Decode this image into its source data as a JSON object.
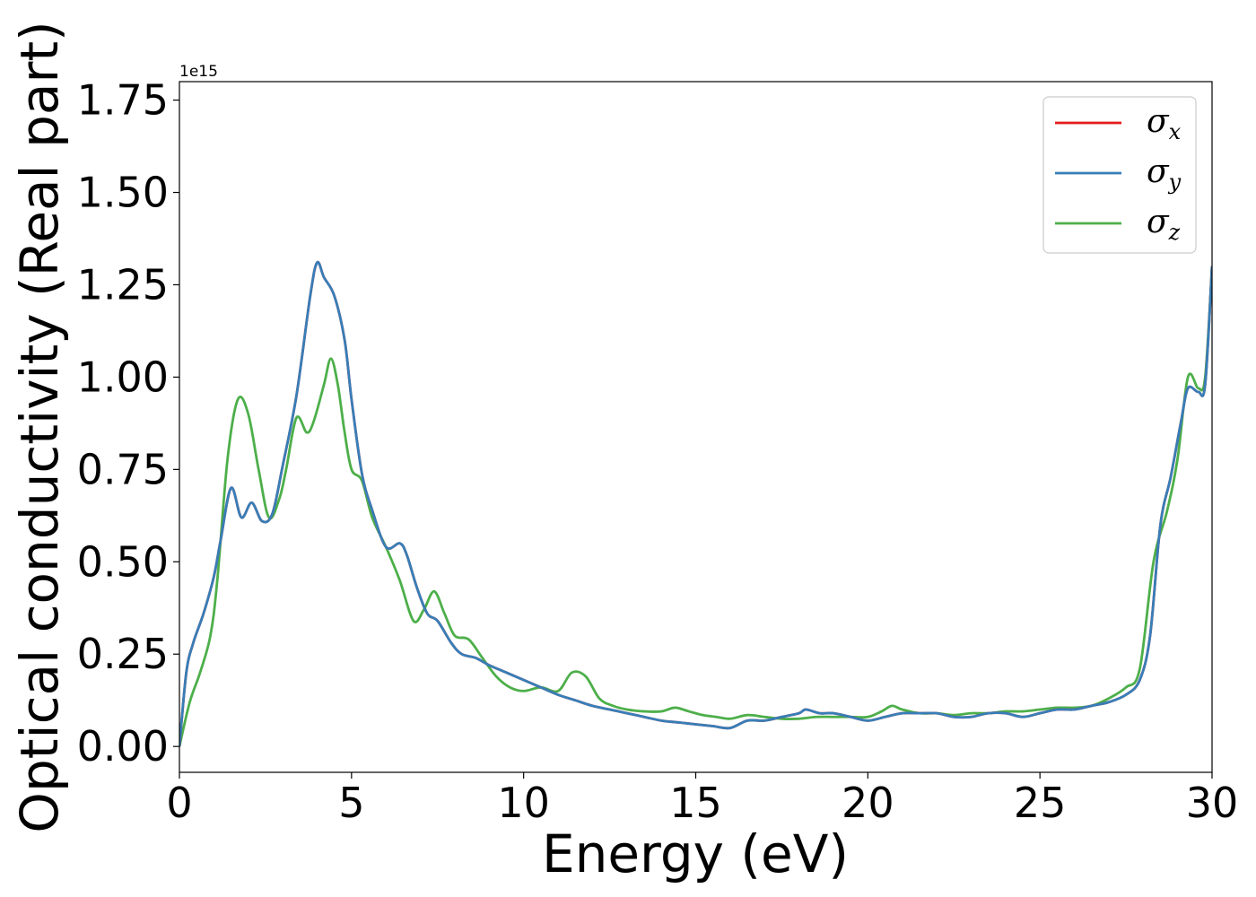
{
  "chart_data": {
    "type": "line",
    "title": "",
    "xlabel": "Energy (eV)",
    "ylabel": "Optical conductivity (Real part)",
    "y_offset_label": "1e15",
    "xlim": [
      0,
      30
    ],
    "ylim": [
      -0.07,
      1.8
    ],
    "xticks": [
      0,
      5,
      10,
      15,
      20,
      25,
      30
    ],
    "yticks": [
      0.0,
      0.25,
      0.5,
      0.75,
      1.0,
      1.25,
      1.5,
      1.75
    ],
    "xtick_labels": [
      "0",
      "5",
      "10",
      "15",
      "20",
      "25",
      "30"
    ],
    "ytick_labels": [
      "0.00",
      "0.25",
      "0.50",
      "0.75",
      "1.00",
      "1.25",
      "1.50",
      "1.75"
    ],
    "grid": false,
    "legend_position": "top-right",
    "series": [
      {
        "name": "σx",
        "symbol": "σ",
        "subscript": "x",
        "color": "#e41a1c",
        "x": [
          0,
          0.2,
          0.4,
          0.7,
          1.0,
          1.2,
          1.5,
          1.8,
          2.1,
          2.4,
          2.7,
          3.0,
          3.4,
          3.8,
          4.0,
          4.2,
          4.5,
          4.8,
          5.0,
          5.3,
          5.6,
          6.0,
          6.4,
          6.6,
          6.9,
          7.2,
          7.5,
          7.9,
          8.2,
          8.6,
          9.0,
          9.5,
          10.0,
          10.5,
          11.0,
          11.5,
          12.0,
          12.5,
          13.0,
          13.5,
          14.0,
          14.5,
          15.0,
          15.5,
          16.0,
          16.5,
          17.0,
          17.5,
          18.0,
          18.2,
          18.6,
          19.0,
          19.5,
          20.0,
          20.5,
          21.0,
          21.5,
          22.0,
          22.5,
          23.0,
          23.5,
          24.0,
          24.5,
          25.0,
          25.5,
          26.0,
          26.5,
          27.0,
          27.5,
          27.9,
          28.2,
          28.5,
          28.8,
          29.1,
          29.3,
          29.6,
          29.8,
          30.0
        ],
        "values": [
          0.0,
          0.2,
          0.28,
          0.36,
          0.46,
          0.56,
          0.7,
          0.62,
          0.66,
          0.61,
          0.63,
          0.76,
          0.95,
          1.22,
          1.31,
          1.27,
          1.22,
          1.1,
          0.94,
          0.74,
          0.64,
          0.54,
          0.55,
          0.52,
          0.43,
          0.36,
          0.34,
          0.28,
          0.25,
          0.24,
          0.22,
          0.2,
          0.18,
          0.16,
          0.14,
          0.125,
          0.11,
          0.1,
          0.09,
          0.08,
          0.07,
          0.065,
          0.06,
          0.055,
          0.05,
          0.07,
          0.07,
          0.08,
          0.09,
          0.1,
          0.09,
          0.09,
          0.08,
          0.07,
          0.08,
          0.09,
          0.09,
          0.09,
          0.08,
          0.08,
          0.09,
          0.09,
          0.08,
          0.09,
          0.1,
          0.1,
          0.11,
          0.12,
          0.14,
          0.18,
          0.3,
          0.6,
          0.73,
          0.88,
          0.97,
          0.96,
          0.98,
          1.3
        ]
      },
      {
        "name": "σy",
        "symbol": "σ",
        "subscript": "y",
        "color": "#377eb8",
        "x": [
          0,
          0.2,
          0.4,
          0.7,
          1.0,
          1.2,
          1.5,
          1.8,
          2.1,
          2.4,
          2.7,
          3.0,
          3.4,
          3.8,
          4.0,
          4.2,
          4.5,
          4.8,
          5.0,
          5.3,
          5.6,
          6.0,
          6.4,
          6.6,
          6.9,
          7.2,
          7.5,
          7.9,
          8.2,
          8.6,
          9.0,
          9.5,
          10.0,
          10.5,
          11.0,
          11.5,
          12.0,
          12.5,
          13.0,
          13.5,
          14.0,
          14.5,
          15.0,
          15.5,
          16.0,
          16.5,
          17.0,
          17.5,
          18.0,
          18.2,
          18.6,
          19.0,
          19.5,
          20.0,
          20.5,
          21.0,
          21.5,
          22.0,
          22.5,
          23.0,
          23.5,
          24.0,
          24.5,
          25.0,
          25.5,
          26.0,
          26.5,
          27.0,
          27.5,
          27.9,
          28.2,
          28.5,
          28.8,
          29.1,
          29.3,
          29.6,
          29.8,
          30.0
        ],
        "values": [
          0.0,
          0.2,
          0.28,
          0.36,
          0.46,
          0.56,
          0.7,
          0.62,
          0.66,
          0.61,
          0.63,
          0.76,
          0.95,
          1.22,
          1.31,
          1.27,
          1.22,
          1.1,
          0.94,
          0.74,
          0.64,
          0.54,
          0.55,
          0.52,
          0.43,
          0.36,
          0.34,
          0.28,
          0.25,
          0.24,
          0.22,
          0.2,
          0.18,
          0.16,
          0.14,
          0.125,
          0.11,
          0.1,
          0.09,
          0.08,
          0.07,
          0.065,
          0.06,
          0.055,
          0.05,
          0.07,
          0.07,
          0.08,
          0.09,
          0.1,
          0.09,
          0.09,
          0.08,
          0.07,
          0.08,
          0.09,
          0.09,
          0.09,
          0.08,
          0.08,
          0.09,
          0.09,
          0.08,
          0.09,
          0.1,
          0.1,
          0.11,
          0.12,
          0.14,
          0.18,
          0.3,
          0.6,
          0.73,
          0.88,
          0.97,
          0.96,
          0.98,
          1.3
        ]
      },
      {
        "name": "σz",
        "symbol": "σ",
        "subscript": "z",
        "color": "#4daf4a",
        "x": [
          0,
          0.3,
          0.6,
          0.9,
          1.1,
          1.4,
          1.7,
          2.0,
          2.3,
          2.6,
          2.9,
          3.1,
          3.4,
          3.7,
          3.9,
          4.2,
          4.4,
          4.6,
          4.8,
          5.0,
          5.3,
          5.6,
          6.0,
          6.4,
          6.8,
          7.1,
          7.4,
          7.7,
          8.0,
          8.4,
          8.8,
          9.2,
          9.6,
          10.0,
          10.5,
          11.0,
          11.4,
          11.8,
          12.2,
          12.6,
          13.0,
          13.5,
          14.0,
          14.4,
          14.8,
          15.2,
          15.6,
          16.0,
          16.5,
          17.0,
          17.5,
          18.0,
          18.5,
          19.0,
          19.5,
          20.0,
          20.4,
          20.7,
          21.0,
          21.5,
          22.0,
          22.5,
          23.0,
          23.5,
          24.0,
          24.5,
          25.0,
          25.5,
          26.0,
          26.5,
          27.0,
          27.5,
          27.9,
          28.3,
          28.7,
          29.0,
          29.3,
          29.6,
          29.8,
          30.0
        ],
        "values": [
          0.0,
          0.12,
          0.2,
          0.3,
          0.45,
          0.78,
          0.94,
          0.9,
          0.75,
          0.62,
          0.67,
          0.75,
          0.89,
          0.85,
          0.88,
          0.98,
          1.05,
          0.98,
          0.85,
          0.75,
          0.72,
          0.62,
          0.54,
          0.45,
          0.34,
          0.37,
          0.42,
          0.36,
          0.3,
          0.29,
          0.24,
          0.19,
          0.16,
          0.15,
          0.16,
          0.15,
          0.2,
          0.19,
          0.13,
          0.11,
          0.1,
          0.095,
          0.095,
          0.105,
          0.095,
          0.085,
          0.08,
          0.075,
          0.085,
          0.08,
          0.075,
          0.075,
          0.08,
          0.08,
          0.08,
          0.08,
          0.095,
          0.11,
          0.1,
          0.09,
          0.09,
          0.085,
          0.09,
          0.09,
          0.095,
          0.095,
          0.1,
          0.105,
          0.105,
          0.11,
          0.13,
          0.16,
          0.21,
          0.5,
          0.64,
          0.78,
          1.0,
          0.97,
          1.0,
          1.3
        ]
      }
    ]
  }
}
